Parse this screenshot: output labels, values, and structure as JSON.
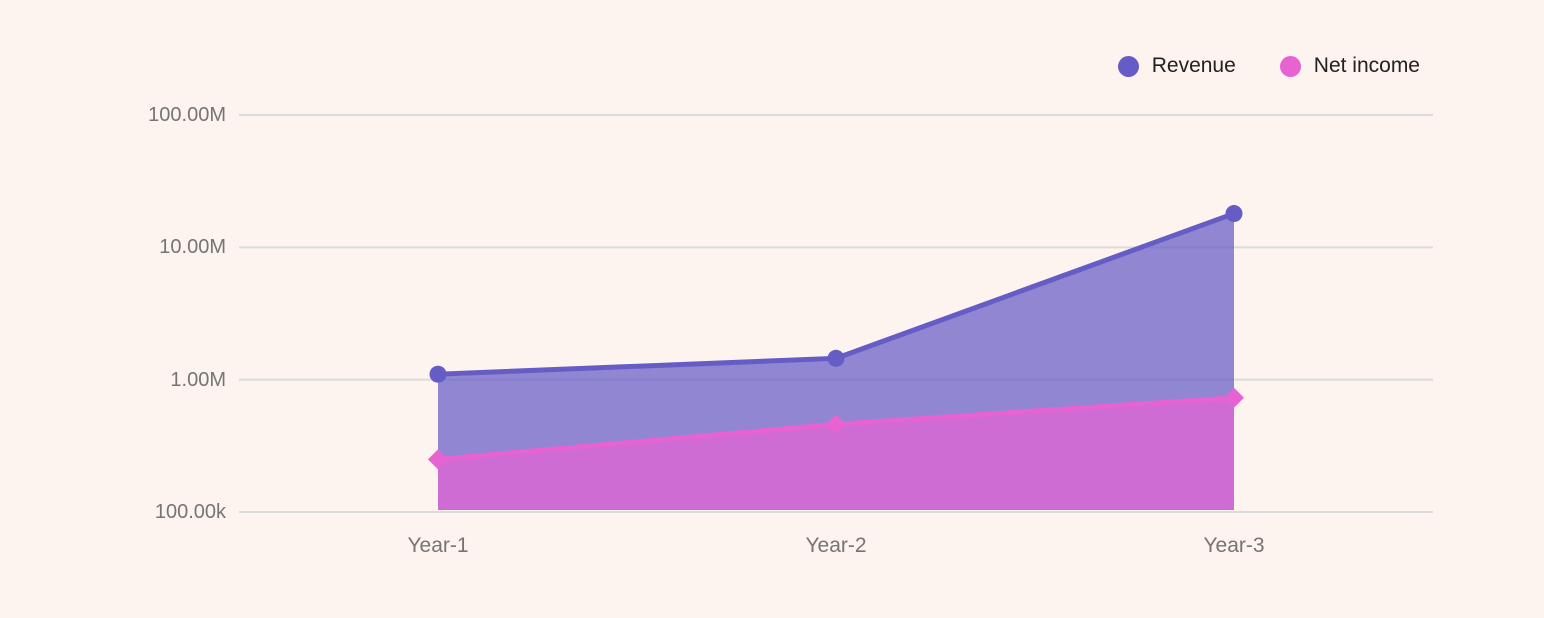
{
  "legend": {
    "position": "top-right",
    "items": [
      {
        "label": "Revenue",
        "color": "#655CC6",
        "icon": "circle-swatch"
      },
      {
        "label": "Net income",
        "color": "#E763D2",
        "icon": "circle-swatch"
      }
    ]
  },
  "chart_data": {
    "type": "area",
    "title": "",
    "xlabel": "",
    "ylabel": "",
    "categories": [
      "Year-1",
      "Year-2",
      "Year-3"
    ],
    "series": [
      {
        "name": "Revenue",
        "color": "#655CC6",
        "fill_opacity": 0.72,
        "marker": "circle",
        "values": [
          1100000,
          1450000,
          18000000
        ]
      },
      {
        "name": "Net income",
        "color": "#E763D2",
        "fill_opacity": 0.72,
        "marker": "diamond",
        "values": [
          250000,
          460000,
          730000
        ]
      }
    ],
    "y_axis": {
      "scale": "log",
      "ticks": [
        {
          "label": "100.00k",
          "value": 100000
        },
        {
          "label": "1.00M",
          "value": 1000000
        },
        {
          "label": "10.00M",
          "value": 10000000
        },
        {
          "label": "100.00M",
          "value": 100000000
        }
      ]
    },
    "ylim": [
      100000,
      100000000
    ],
    "grid": true,
    "legend_position": "top-right",
    "colors": {
      "background": "#FDF3EF",
      "gridline": "#DBDBDB",
      "axis_label": "#757575",
      "legend_text": "#212121"
    }
  }
}
